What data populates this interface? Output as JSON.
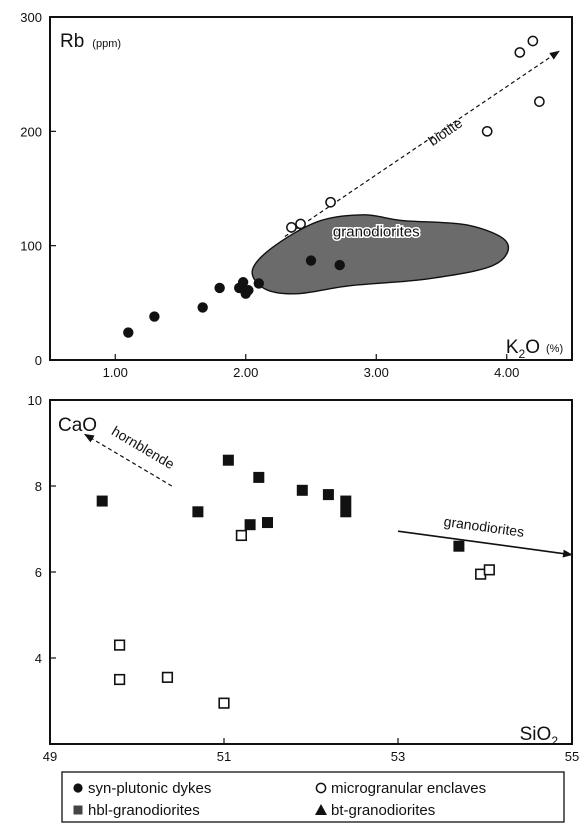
{
  "chart_data": [
    {
      "type": "scatter",
      "ylabel": "Rb",
      "ylabel_unit": "(ppm)",
      "xlabel": "K",
      "xlabel_sub": "2",
      "xlabel_tail": "O",
      "xlabel_unit": "(%)",
      "xlim": [
        0.5,
        4.5
      ],
      "ylim": [
        0,
        300
      ],
      "x_ticks": [
        "1.00",
        "2.00",
        "3.00",
        "4.00"
      ],
      "x_tick_values": [
        1,
        2,
        3,
        4
      ],
      "y_ticks": [
        "0",
        "100",
        "200",
        "300"
      ],
      "y_tick_values": [
        0,
        100,
        200,
        300
      ],
      "series": [
        {
          "name": "syn-plutonic dykes",
          "marker": "filled-circle",
          "x": [
            1.1,
            1.3,
            1.67,
            1.8,
            1.95,
            1.98,
            2.0,
            2.0,
            2.02,
            2.1,
            2.5,
            2.72
          ],
          "y": [
            24,
            38,
            46,
            63,
            63,
            68,
            58,
            60,
            61,
            67,
            87,
            83
          ]
        },
        {
          "name": "microgranular enclaves",
          "marker": "open-circle",
          "x": [
            2.35,
            2.42,
            2.65,
            3.85,
            4.1,
            4.2,
            4.25
          ],
          "y": [
            116,
            119,
            138,
            200,
            269,
            279,
            226
          ]
        }
      ],
      "region": {
        "label": "granodiorites",
        "outline": [
          [
            2.15,
            62
          ],
          [
            2.4,
            58
          ],
          [
            2.8,
            65
          ],
          [
            3.4,
            71
          ],
          [
            3.9,
            83
          ],
          [
            4.0,
            103
          ],
          [
            3.7,
            118
          ],
          [
            3.2,
            122
          ],
          [
            2.9,
            127
          ],
          [
            2.55,
            121
          ],
          [
            2.2,
            98
          ],
          [
            2.05,
            78
          ]
        ]
      },
      "trend": {
        "label": "biotite",
        "from": [
          2.3,
          108
        ],
        "to": [
          4.4,
          270
        ]
      }
    },
    {
      "type": "scatter",
      "ylabel": "CaO",
      "xlabel": "SiO",
      "xlabel_sub": "2",
      "xlim": [
        49,
        55
      ],
      "ylim": [
        2,
        10
      ],
      "x_ticks": [
        "49",
        "51",
        "53",
        "55"
      ],
      "x_tick_values": [
        49,
        51,
        53,
        55
      ],
      "y_ticks": [
        "4",
        "6",
        "8",
        "10"
      ],
      "y_tick_values": [
        4,
        6,
        8,
        10
      ],
      "series": [
        {
          "name": "hbl-granodiorites",
          "marker": "filled-square",
          "x": [
            49.6,
            50.7,
            51.05,
            51.3,
            51.4,
            51.5,
            51.9,
            52.2,
            52.4,
            52.4,
            53.7
          ],
          "y": [
            7.65,
            7.4,
            8.6,
            7.1,
            8.2,
            7.15,
            7.9,
            7.8,
            7.65,
            7.4,
            6.6
          ]
        },
        {
          "name": "microgranular enclaves",
          "marker": "open-square",
          "x": [
            49.8,
            49.8,
            50.35,
            51.0,
            51.2,
            53.95,
            54.05
          ],
          "y": [
            4.3,
            3.5,
            3.55,
            2.95,
            6.85,
            5.95,
            6.05
          ]
        }
      ],
      "trends": [
        {
          "label": "hornblende",
          "from": [
            50.4,
            8.0
          ],
          "to": [
            49.4,
            9.2
          ]
        },
        {
          "label": "granodiorites",
          "from": [
            53.0,
            6.95
          ],
          "to": [
            55.0,
            6.4
          ]
        }
      ]
    }
  ],
  "legend": [
    {
      "label": "syn-plutonic dykes",
      "marker": "filled-circle"
    },
    {
      "label": "microgranular enclaves",
      "marker": "open-circle"
    },
    {
      "label": "hbl-granodiorites",
      "marker": "filled-square"
    },
    {
      "label": "bt-granodiorites",
      "marker": "filled-triangle"
    }
  ],
  "colors": {
    "ink": "#111111",
    "region_fill": "#6b6b6b",
    "paper": "#ffffff"
  }
}
